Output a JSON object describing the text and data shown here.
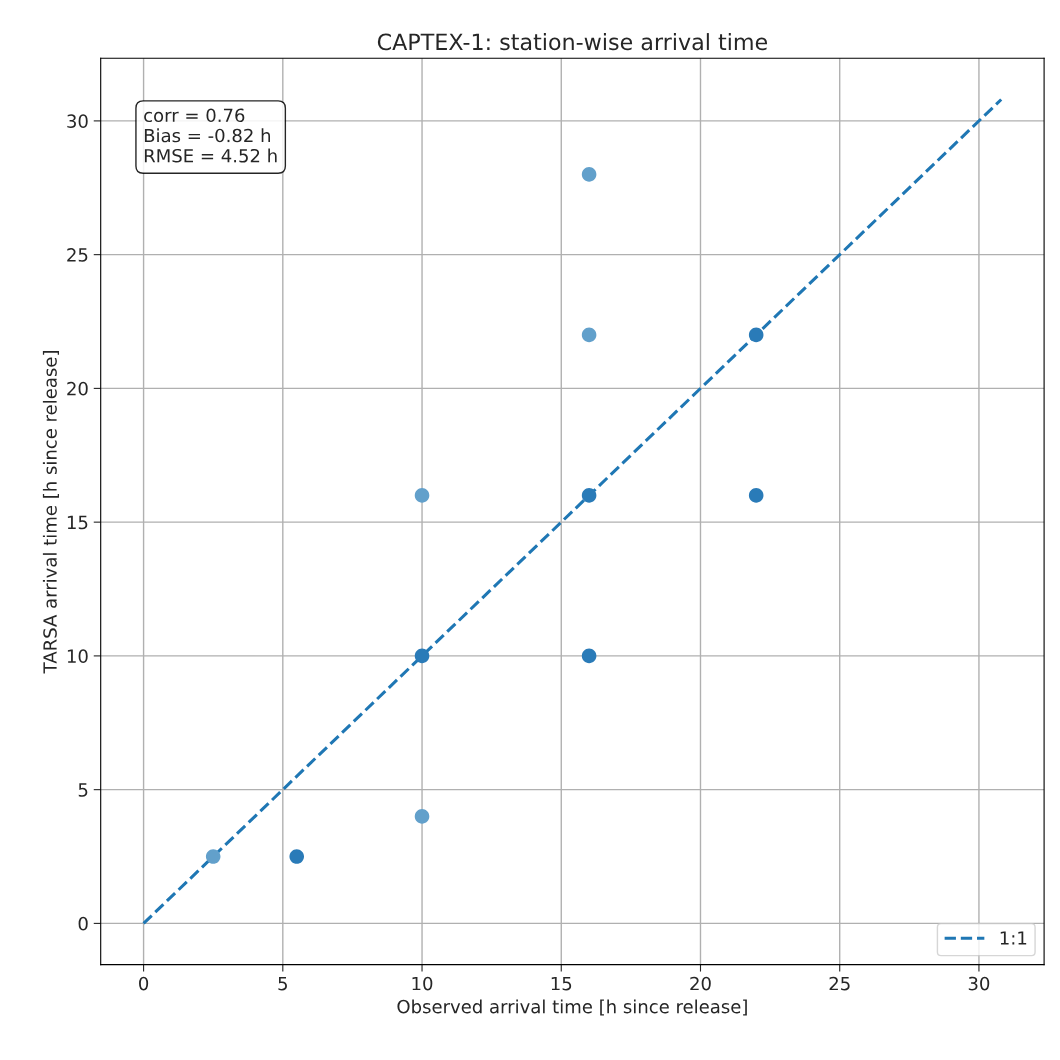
{
  "chart_data": {
    "type": "scatter",
    "title": "CAPTEX-1: station-wise arrival time",
    "xlabel": "Observed arrival time [h since release]",
    "ylabel": "TARSA arrival time [h since release]",
    "xlim": [
      -1.54,
      32.34
    ],
    "ylim": [
      -1.54,
      32.34
    ],
    "xticks": [
      0,
      5,
      10,
      15,
      20,
      25,
      30
    ],
    "yticks": [
      0,
      5,
      10,
      15,
      20,
      25,
      30
    ],
    "grid": true,
    "legend": "bottom right",
    "marker": "circle",
    "series": [
      {
        "colors": [
          "#62a0cb",
          "#2a7bb8",
          "#62a0cb",
          "#2a7bb8",
          "#62a0cb",
          "#2a7bb8",
          "#2a7bb8",
          "#62a0cb",
          "#62a0cb",
          "#2a7bb8",
          "#2a7bb8"
        ],
        "x": [
          2.5,
          5.5,
          10,
          10,
          10,
          16,
          16,
          16,
          16,
          22,
          22
        ],
        "values": [
          2.5,
          2.5,
          4,
          10,
          16,
          10,
          16,
          22,
          28,
          16,
          22
        ]
      },
      {
        "type": "line",
        "name": "1:1",
        "color": "#1f77b4",
        "line_style": "dashed",
        "marker": "none",
        "x": [
          0,
          30.8
        ],
        "values": [
          0,
          30.8
        ]
      }
    ],
    "annotations": [
      "corr = 0.76\nBias = -0.82 h\nRMSE = 4.52 h"
    ]
  }
}
